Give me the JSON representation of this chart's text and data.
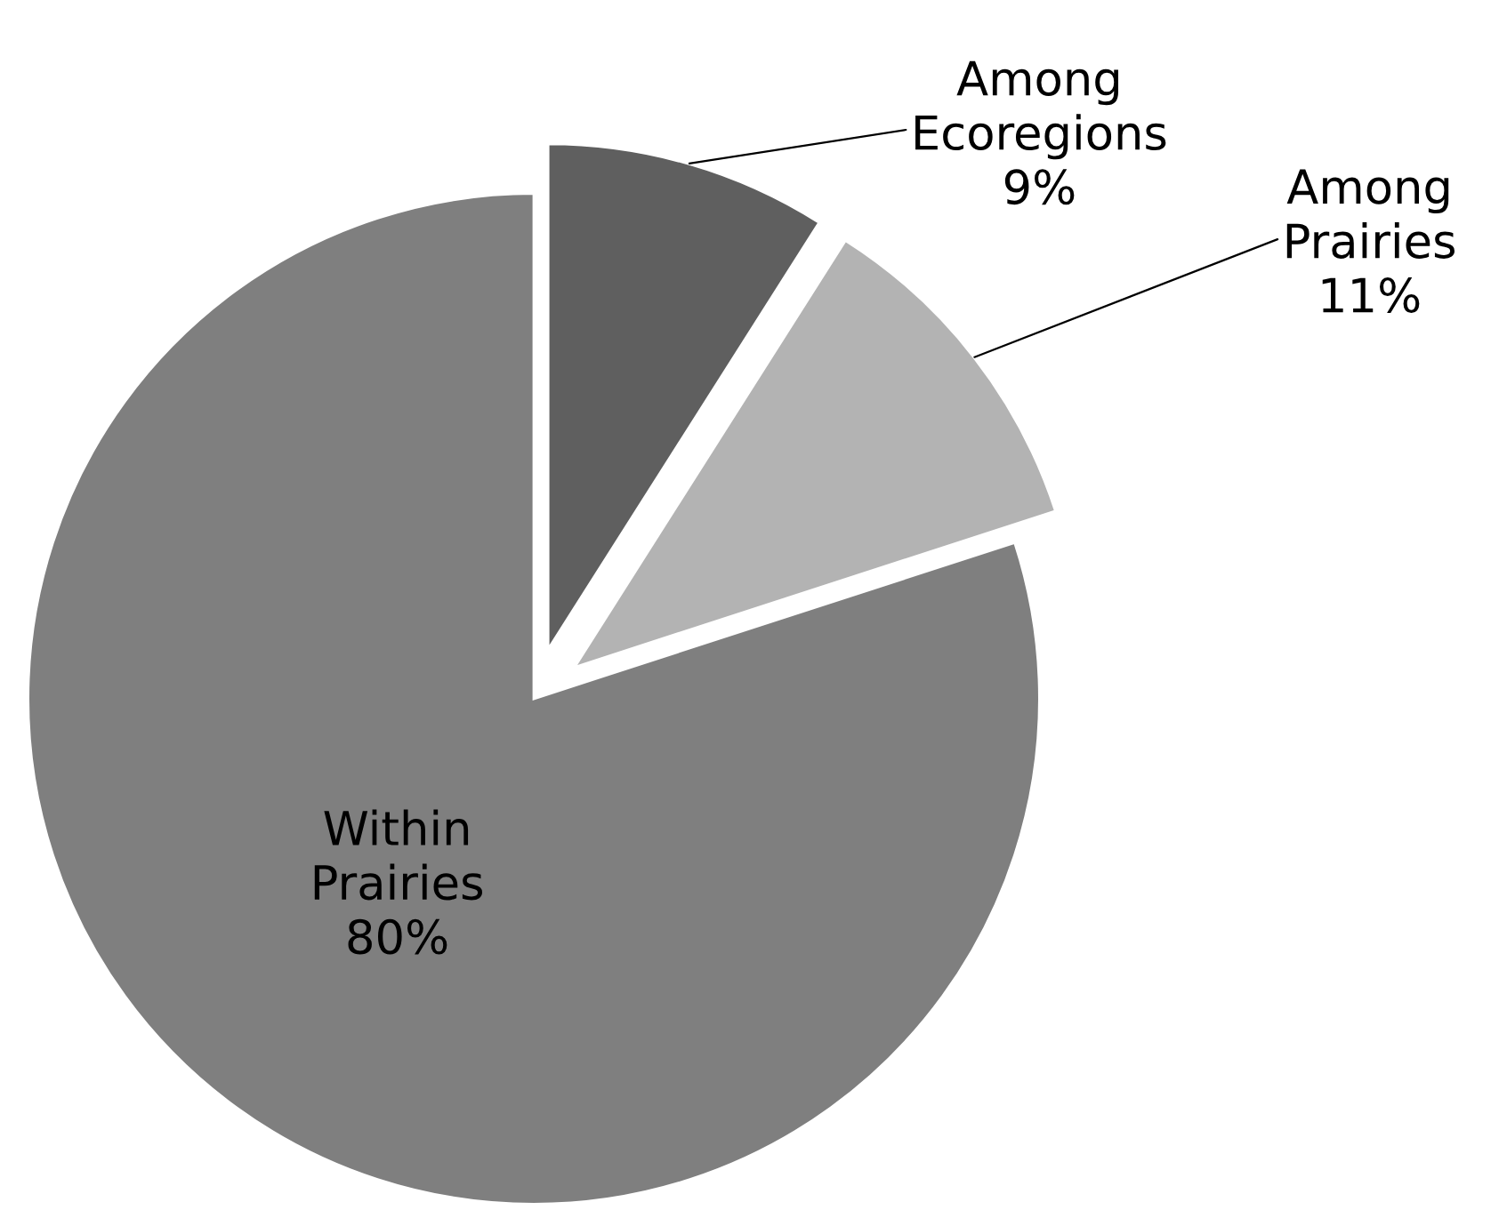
{
  "chart_data": {
    "type": "pie",
    "categories": [
      "Among Ecoregions",
      "Among Prairies",
      "Within Prairies"
    ],
    "values": [
      9,
      11,
      80
    ],
    "value_labels": [
      "9%",
      "11%",
      "80%"
    ],
    "colors": [
      "#5f5f5f",
      "#b3b3b3",
      "#7f7f7f"
    ],
    "legend": false
  }
}
